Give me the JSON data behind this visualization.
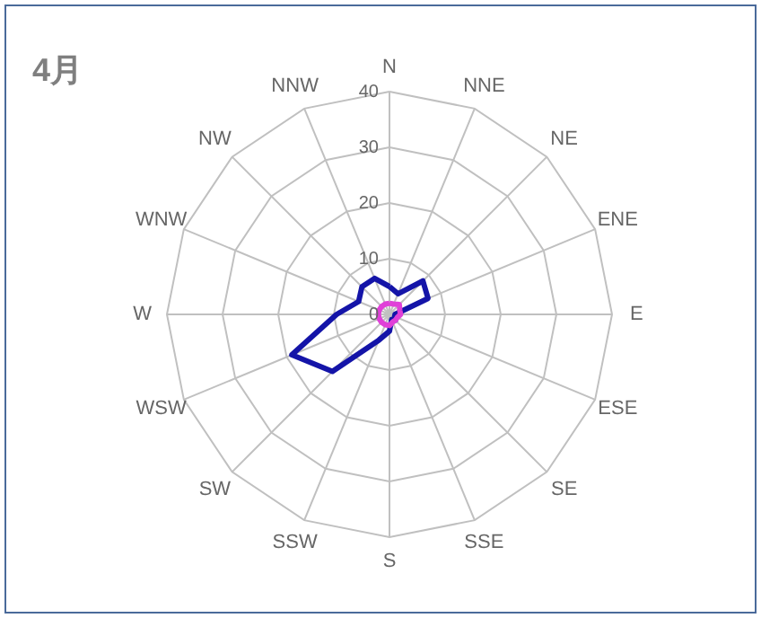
{
  "chart_data": {
    "type": "radar",
    "title": "4月",
    "categories": [
      "N",
      "NNE",
      "NE",
      "ENE",
      "E",
      "ESE",
      "SE",
      "SSE",
      "S",
      "SSW",
      "SW",
      "WSW",
      "W",
      "WNW",
      "NW",
      "NNW"
    ],
    "series": [
      {
        "color": "#1414a8",
        "values": [
          5,
          4,
          8.5,
          7.5,
          1,
          1,
          1.5,
          1,
          3,
          5,
          14.5,
          19,
          9.5,
          6,
          7,
          7
        ]
      },
      {
        "color": "#e040d8",
        "values": [
          2,
          2,
          2.5,
          2,
          2,
          1.5,
          1.5,
          1.5,
          2,
          2,
          2,
          2,
          2,
          2,
          2,
          2
        ]
      }
    ],
    "ylim": [
      0,
      40
    ],
    "yticks": [
      0,
      10,
      20,
      30,
      40
    ],
    "grid": true,
    "line_style": "solid",
    "marker": "none"
  }
}
